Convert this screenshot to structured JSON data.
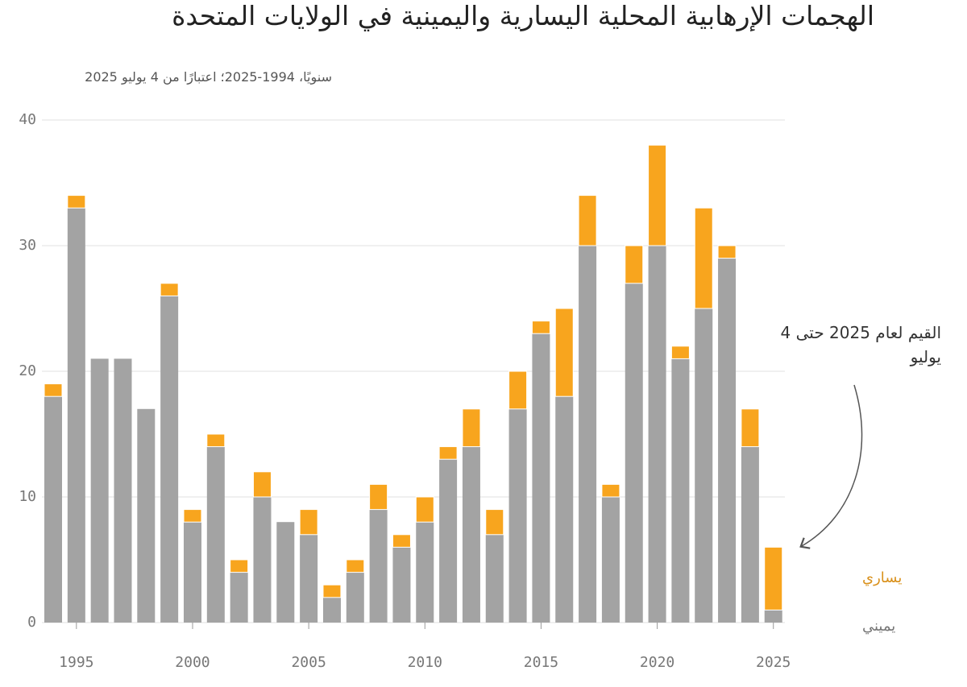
{
  "title": "الهجمات الإرهابية المحلية اليسارية واليمينية في الولايات المتحدة",
  "subtitle": "سنويًا، 1994-2025؛ اعتبارًا من 4 يوليو 2025",
  "chart_data": {
    "type": "bar",
    "stacked": true,
    "annotation": "القيم لعام 2025 حتى 4 يوليو",
    "x": [
      1994,
      1995,
      1996,
      1997,
      1998,
      1999,
      2000,
      2001,
      2002,
      2003,
      2004,
      2005,
      2006,
      2007,
      2008,
      2009,
      2010,
      2011,
      2012,
      2013,
      2014,
      2015,
      2016,
      2017,
      2018,
      2019,
      2020,
      2021,
      2022,
      2023,
      2024,
      2025
    ],
    "xlim": [
      1993.5,
      2025.5
    ],
    "xticks": [
      1995,
      2000,
      2005,
      2010,
      2015,
      2020,
      2025
    ],
    "ylim": [
      0,
      40
    ],
    "yticks": [
      0,
      10,
      20,
      30,
      40
    ],
    "grid": true,
    "series": [
      {
        "name": "يميني",
        "color": "#a3a3a3",
        "values": [
          18,
          33,
          21,
          21,
          17,
          26,
          8,
          14,
          4,
          10,
          8,
          7,
          2,
          4,
          9,
          6,
          8,
          13,
          14,
          7,
          17,
          23,
          18,
          30,
          10,
          27,
          30,
          21,
          25,
          29,
          14,
          1
        ]
      },
      {
        "name": "يساري",
        "color": "#f8a51e",
        "values": [
          1,
          1,
          0,
          0,
          0,
          1,
          1,
          1,
          1,
          2,
          0,
          2,
          1,
          1,
          2,
          1,
          2,
          1,
          3,
          2,
          3,
          1,
          7,
          4,
          1,
          3,
          8,
          1,
          8,
          1,
          3,
          5
        ]
      }
    ]
  }
}
